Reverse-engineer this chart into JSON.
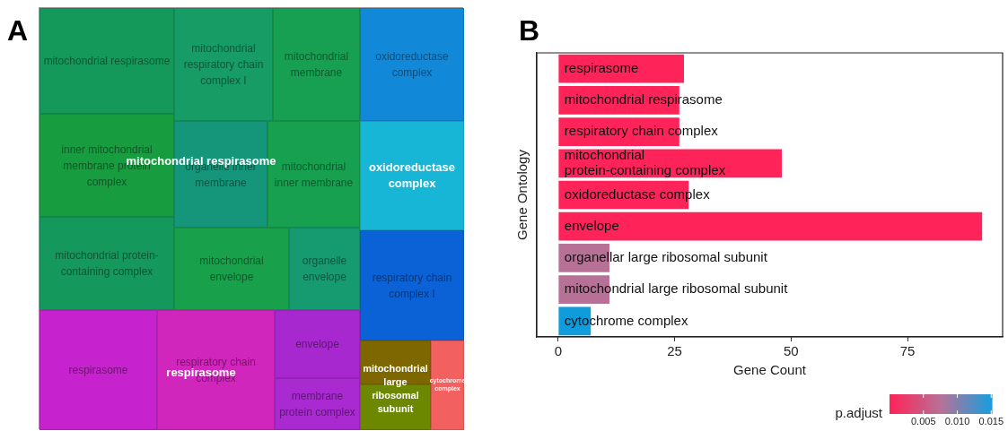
{
  "chart_data": [
    {
      "type": "other",
      "title": "A",
      "categories": [
        "mitochondrial respirasome",
        "mitochondrial respiratory chain complex I",
        "mitochondrial membrane",
        "inner mitochondrial membrane protein complex",
        "organelle inner membrane",
        "mitochondrial inner membrane",
        "mitochondrial protein-containing complex",
        "mitochondrial envelope",
        "organelle envelope",
        "respirasome",
        "respiratory chain complex",
        "envelope",
        "membrane protein complex",
        "oxidoreductase complex",
        null,
        "respiratory chain complex I",
        null,
        null,
        null
      ],
      "colors": [
        "#15995a",
        "#169c64",
        "#17a052",
        "#179c40",
        "#15967a",
        "#17a050",
        "#15985c",
        "#18a04a",
        "#169a70",
        "#c623cf",
        "#d126bc",
        "#a828cf",
        "#a82ad0",
        "#1289d8",
        "#17b6d6",
        "#0b62d6",
        "#7f6700",
        "#6b8800",
        "#f26060"
      ],
      "annotations": [
        "mitochondrial respirasome",
        "oxidoreductase complex",
        "respirasome",
        "mitochondrial large ribosomal subunit",
        "cytochrome complex"
      ]
    },
    {
      "type": "bar",
      "title": "B",
      "orientation": "horizontal",
      "categories": [
        "respirasome",
        "mitochondrial respirasome",
        "respiratory chain complex",
        "mitochondrial\nprotein-containing complex",
        "oxidoreductase complex",
        "envelope",
        "organellar large ribosomal subunit",
        "mitochondrial large ribosomal subunit",
        "cytochrome complex"
      ],
      "values": [
        27,
        26,
        26,
        48,
        28,
        91,
        11,
        11,
        7
      ],
      "colors": [
        "#fe2359",
        "#fe2359",
        "#fe2359",
        "#fe2359",
        "#fe2359",
        "#fe2359",
        "#b77196",
        "#b77196",
        "#0f9bdc"
      ],
      "xlabel": "Gene Count",
      "ylabel": "Gene Ontology",
      "xlim": [
        -4.6,
        95.4
      ],
      "xticks": [
        0,
        25,
        50,
        75
      ],
      "tick_labels": "x",
      "grid": false,
      "clabel": "p.adjust",
      "clim": [
        0,
        0.0151
      ],
      "cticks": [
        {
          "value": 0.005,
          "label": "0.005"
        },
        {
          "value": 0.01,
          "label": "0.010"
        },
        {
          "value": 0.015,
          "label": "0.015"
        }
      ]
    }
  ]
}
